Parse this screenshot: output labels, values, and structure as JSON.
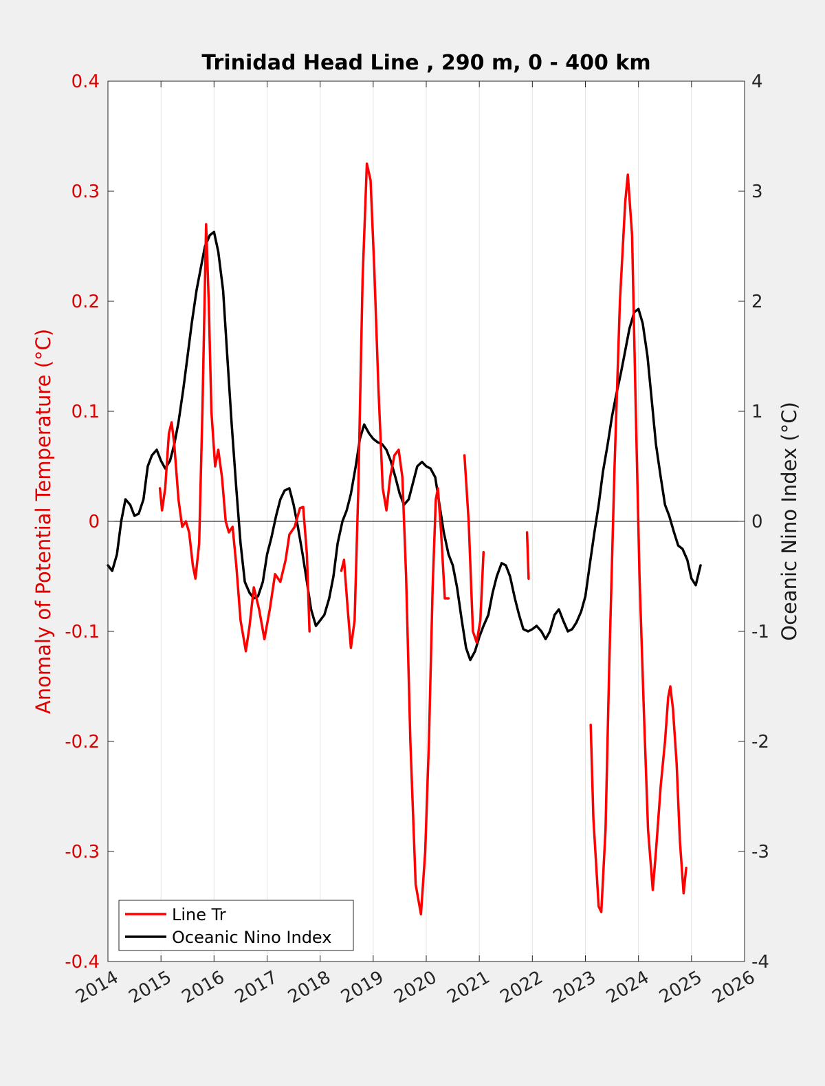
{
  "chart_data": {
    "type": "line",
    "title": "Trinidad Head Line , 290 m, 0 - 400 km",
    "xlabel": "",
    "ylabel_left": "Anomaly of Potential Temperature (°C)",
    "ylabel_right": "Oceanic Nino Index (°C)",
    "xlim": [
      2014,
      2026
    ],
    "ylim_left": [
      -0.4,
      0.4
    ],
    "ylim_right": [
      -4,
      4
    ],
    "x_ticks": [
      "2014",
      "2015",
      "2016",
      "2017",
      "2018",
      "2019",
      "2020",
      "2021",
      "2022",
      "2023",
      "2024",
      "2025",
      "2026"
    ],
    "y_ticks_left": [
      "-0.4",
      "-0.3",
      "-0.2",
      "-0.1",
      "0",
      "0.1",
      "0.2",
      "0.3",
      "0.4"
    ],
    "y_ticks_right": [
      "-4",
      "-3",
      "-2",
      "-1",
      "0",
      "1",
      "2",
      "3",
      "4"
    ],
    "grid": "vertical",
    "zero_line": true,
    "legend": "bottom-left",
    "colors": {
      "line_tr": "#ff0000",
      "oni": "#000000",
      "left_axis": "#e00000",
      "right_axis": "#1a1a1a"
    },
    "series": [
      {
        "name": "Line Tr",
        "axis": "left",
        "segments": [
          [
            [
              2014.98,
              0.03
            ],
            [
              2015.02,
              0.01
            ],
            [
              2015.08,
              0.03
            ],
            [
              2015.15,
              0.08
            ],
            [
              2015.2,
              0.09
            ],
            [
              2015.25,
              0.07
            ],
            [
              2015.33,
              0.02
            ],
            [
              2015.4,
              -0.005
            ],
            [
              2015.47,
              0.0
            ],
            [
              2015.53,
              -0.01
            ],
            [
              2015.6,
              -0.04
            ],
            [
              2015.65,
              -0.052
            ],
            [
              2015.72,
              -0.02
            ],
            [
              2015.78,
              0.1
            ],
            [
              2015.85,
              0.27
            ],
            [
              2015.9,
              0.2
            ],
            [
              2015.95,
              0.1
            ],
            [
              2016.02,
              0.05
            ],
            [
              2016.08,
              0.065
            ],
            [
              2016.15,
              0.04
            ],
            [
              2016.22,
              0.0
            ],
            [
              2016.28,
              -0.01
            ],
            [
              2016.35,
              -0.005
            ],
            [
              2016.42,
              -0.04
            ],
            [
              2016.5,
              -0.09
            ],
            [
              2016.6,
              -0.118
            ],
            [
              2016.67,
              -0.095
            ],
            [
              2016.75,
              -0.06
            ],
            [
              2016.85,
              -0.08
            ],
            [
              2016.95,
              -0.107
            ],
            [
              2017.05,
              -0.08
            ],
            [
              2017.15,
              -0.048
            ],
            [
              2017.25,
              -0.055
            ],
            [
              2017.35,
              -0.035
            ],
            [
              2017.42,
              -0.012
            ],
            [
              2017.52,
              -0.005
            ],
            [
              2017.62,
              0.012
            ],
            [
              2017.68,
              0.013
            ],
            [
              2017.75,
              -0.03
            ],
            [
              2017.8,
              -0.1
            ]
          ],
          [
            [
              2018.4,
              -0.045
            ],
            [
              2018.45,
              -0.035
            ],
            [
              2018.52,
              -0.08
            ],
            [
              2018.58,
              -0.115
            ],
            [
              2018.65,
              -0.09
            ],
            [
              2018.72,
              0.03
            ],
            [
              2018.8,
              0.22
            ],
            [
              2018.88,
              0.325
            ],
            [
              2018.95,
              0.31
            ],
            [
              2019.02,
              0.23
            ],
            [
              2019.1,
              0.12
            ],
            [
              2019.18,
              0.03
            ],
            [
              2019.25,
              0.01
            ],
            [
              2019.32,
              0.04
            ],
            [
              2019.4,
              0.06
            ],
            [
              2019.48,
              0.065
            ],
            [
              2019.55,
              0.04
            ],
            [
              2019.62,
              -0.05
            ],
            [
              2019.7,
              -0.2
            ],
            [
              2019.8,
              -0.33
            ],
            [
              2019.9,
              -0.357
            ],
            [
              2019.98,
              -0.3
            ],
            [
              2020.05,
              -0.2
            ],
            [
              2020.12,
              -0.06
            ],
            [
              2020.18,
              0.02
            ],
            [
              2020.22,
              0.03
            ],
            [
              2020.28,
              -0.01
            ],
            [
              2020.35,
              -0.07
            ],
            [
              2020.42,
              -0.07
            ]
          ],
          [
            [
              2020.72,
              0.06
            ],
            [
              2020.8,
              0.0
            ],
            [
              2020.88,
              -0.1
            ],
            [
              2020.95,
              -0.11
            ],
            [
              2021.02,
              -0.09
            ],
            [
              2021.08,
              -0.028
            ]
          ],
          [
            [
              2021.9,
              -0.01
            ],
            [
              2021.93,
              -0.052
            ]
          ],
          [
            [
              2023.1,
              -0.185
            ],
            [
              2023.15,
              -0.27
            ],
            [
              2023.25,
              -0.35
            ],
            [
              2023.3,
              -0.355
            ],
            [
              2023.38,
              -0.28
            ],
            [
              2023.45,
              -0.13
            ],
            [
              2023.55,
              0.05
            ],
            [
              2023.65,
              0.2
            ],
            [
              2023.75,
              0.29
            ],
            [
              2023.8,
              0.315
            ],
            [
              2023.88,
              0.26
            ],
            [
              2023.95,
              0.1
            ],
            [
              2024.02,
              -0.05
            ],
            [
              2024.1,
              -0.17
            ],
            [
              2024.18,
              -0.28
            ],
            [
              2024.27,
              -0.335
            ],
            [
              2024.33,
              -0.3
            ],
            [
              2024.42,
              -0.24
            ],
            [
              2024.5,
              -0.2
            ],
            [
              2024.56,
              -0.16
            ],
            [
              2024.6,
              -0.15
            ],
            [
              2024.65,
              -0.17
            ],
            [
              2024.72,
              -0.22
            ],
            [
              2024.78,
              -0.29
            ],
            [
              2024.85,
              -0.338
            ],
            [
              2024.9,
              -0.315
            ]
          ]
        ]
      },
      {
        "name": "Oceanic Nino Index",
        "axis": "right",
        "points": [
          [
            2014.0,
            -0.4
          ],
          [
            2014.08,
            -0.45
          ],
          [
            2014.17,
            -0.3
          ],
          [
            2014.25,
            0.0
          ],
          [
            2014.33,
            0.2
          ],
          [
            2014.42,
            0.15
          ],
          [
            2014.5,
            0.05
          ],
          [
            2014.58,
            0.07
          ],
          [
            2014.67,
            0.2
          ],
          [
            2014.75,
            0.5
          ],
          [
            2014.83,
            0.6
          ],
          [
            2014.92,
            0.65
          ],
          [
            2015.0,
            0.55
          ],
          [
            2015.08,
            0.48
          ],
          [
            2015.17,
            0.55
          ],
          [
            2015.25,
            0.7
          ],
          [
            2015.33,
            0.9
          ],
          [
            2015.42,
            1.2
          ],
          [
            2015.5,
            1.5
          ],
          [
            2015.58,
            1.8
          ],
          [
            2015.67,
            2.1
          ],
          [
            2015.75,
            2.3
          ],
          [
            2015.83,
            2.5
          ],
          [
            2015.92,
            2.6
          ],
          [
            2016.0,
            2.63
          ],
          [
            2016.08,
            2.45
          ],
          [
            2016.17,
            2.1
          ],
          [
            2016.25,
            1.5
          ],
          [
            2016.33,
            0.9
          ],
          [
            2016.42,
            0.3
          ],
          [
            2016.5,
            -0.2
          ],
          [
            2016.58,
            -0.55
          ],
          [
            2016.67,
            -0.65
          ],
          [
            2016.75,
            -0.7
          ],
          [
            2016.83,
            -0.68
          ],
          [
            2016.92,
            -0.55
          ],
          [
            2017.0,
            -0.3
          ],
          [
            2017.08,
            -0.15
          ],
          [
            2017.17,
            0.05
          ],
          [
            2017.25,
            0.2
          ],
          [
            2017.33,
            0.28
          ],
          [
            2017.42,
            0.3
          ],
          [
            2017.5,
            0.15
          ],
          [
            2017.58,
            -0.05
          ],
          [
            2017.67,
            -0.3
          ],
          [
            2017.75,
            -0.55
          ],
          [
            2017.83,
            -0.8
          ],
          [
            2017.92,
            -0.95
          ],
          [
            2018.0,
            -0.9
          ],
          [
            2018.08,
            -0.85
          ],
          [
            2018.17,
            -0.7
          ],
          [
            2018.25,
            -0.5
          ],
          [
            2018.33,
            -0.2
          ],
          [
            2018.42,
            0.0
          ],
          [
            2018.5,
            0.1
          ],
          [
            2018.58,
            0.25
          ],
          [
            2018.67,
            0.5
          ],
          [
            2018.75,
            0.75
          ],
          [
            2018.83,
            0.88
          ],
          [
            2018.92,
            0.8
          ],
          [
            2019.0,
            0.75
          ],
          [
            2019.08,
            0.72
          ],
          [
            2019.17,
            0.7
          ],
          [
            2019.25,
            0.65
          ],
          [
            2019.33,
            0.55
          ],
          [
            2019.42,
            0.4
          ],
          [
            2019.5,
            0.25
          ],
          [
            2019.58,
            0.15
          ],
          [
            2019.67,
            0.2
          ],
          [
            2019.75,
            0.35
          ],
          [
            2019.83,
            0.5
          ],
          [
            2019.92,
            0.54
          ],
          [
            2020.0,
            0.5
          ],
          [
            2020.08,
            0.48
          ],
          [
            2020.17,
            0.4
          ],
          [
            2020.25,
            0.15
          ],
          [
            2020.33,
            -0.1
          ],
          [
            2020.42,
            -0.3
          ],
          [
            2020.5,
            -0.4
          ],
          [
            2020.58,
            -0.6
          ],
          [
            2020.67,
            -0.9
          ],
          [
            2020.75,
            -1.15
          ],
          [
            2020.83,
            -1.26
          ],
          [
            2020.92,
            -1.18
          ],
          [
            2021.0,
            -1.05
          ],
          [
            2021.08,
            -0.95
          ],
          [
            2021.17,
            -0.85
          ],
          [
            2021.25,
            -0.65
          ],
          [
            2021.33,
            -0.5
          ],
          [
            2021.42,
            -0.38
          ],
          [
            2021.5,
            -0.4
          ],
          [
            2021.58,
            -0.5
          ],
          [
            2021.67,
            -0.7
          ],
          [
            2021.75,
            -0.85
          ],
          [
            2021.83,
            -0.98
          ],
          [
            2021.92,
            -1.0
          ],
          [
            2022.0,
            -0.98
          ],
          [
            2022.08,
            -0.95
          ],
          [
            2022.17,
            -1.0
          ],
          [
            2022.25,
            -1.07
          ],
          [
            2022.33,
            -1.0
          ],
          [
            2022.42,
            -0.85
          ],
          [
            2022.5,
            -0.8
          ],
          [
            2022.58,
            -0.9
          ],
          [
            2022.67,
            -1.0
          ],
          [
            2022.75,
            -0.98
          ],
          [
            2022.83,
            -0.92
          ],
          [
            2022.92,
            -0.82
          ],
          [
            2023.0,
            -0.68
          ],
          [
            2023.08,
            -0.4
          ],
          [
            2023.17,
            -0.1
          ],
          [
            2023.25,
            0.15
          ],
          [
            2023.33,
            0.45
          ],
          [
            2023.42,
            0.7
          ],
          [
            2023.5,
            0.95
          ],
          [
            2023.58,
            1.15
          ],
          [
            2023.67,
            1.35
          ],
          [
            2023.75,
            1.55
          ],
          [
            2023.83,
            1.75
          ],
          [
            2023.92,
            1.9
          ],
          [
            2024.0,
            1.93
          ],
          [
            2024.08,
            1.8
          ],
          [
            2024.17,
            1.5
          ],
          [
            2024.25,
            1.1
          ],
          [
            2024.33,
            0.7
          ],
          [
            2024.42,
            0.4
          ],
          [
            2024.5,
            0.15
          ],
          [
            2024.58,
            0.05
          ],
          [
            2024.67,
            -0.1
          ],
          [
            2024.75,
            -0.22
          ],
          [
            2024.83,
            -0.25
          ],
          [
            2024.92,
            -0.35
          ],
          [
            2025.0,
            -0.52
          ],
          [
            2025.08,
            -0.58
          ],
          [
            2025.17,
            -0.4
          ]
        ]
      }
    ]
  }
}
